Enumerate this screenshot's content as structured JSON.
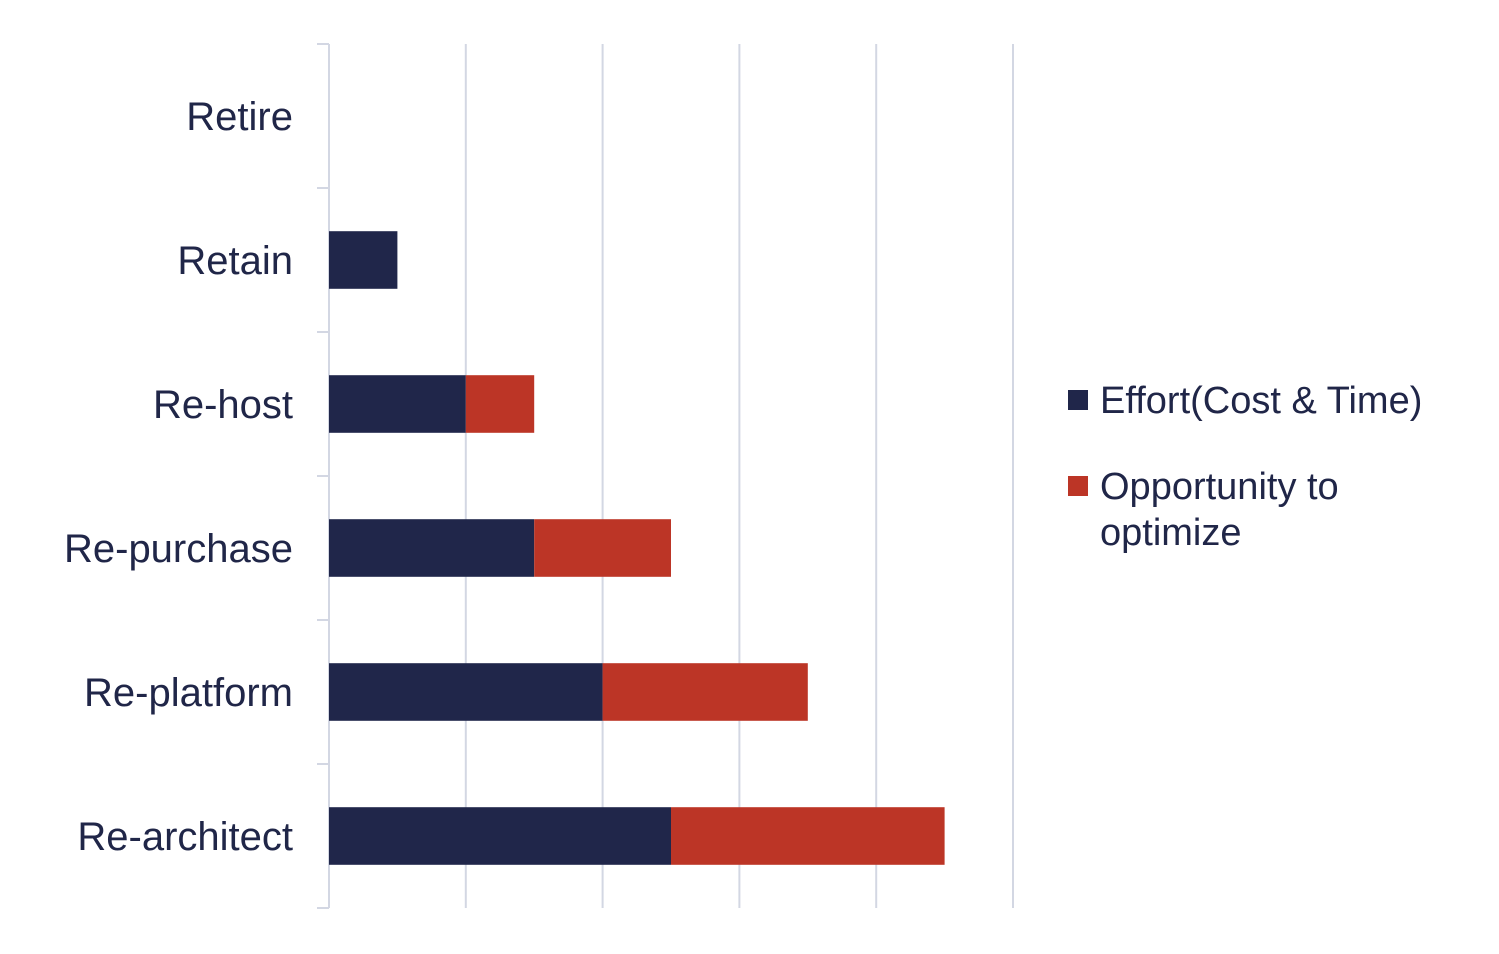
{
  "chart_data": {
    "type": "bar",
    "orientation": "horizontal",
    "stacked": true,
    "categories": [
      "Retire",
      "Retain",
      "Re-host",
      "Re-purchase",
      "Re-platform",
      "Re-architect"
    ],
    "series": [
      {
        "name": "Effort(Cost & Time)",
        "color": "#20264a",
        "values": [
          0,
          0.5,
          1,
          1.5,
          2,
          2.5
        ]
      },
      {
        "name": "Opportunity to optimize",
        "color": "#bc3526",
        "values": [
          0,
          0,
          0.5,
          1,
          1.5,
          2
        ]
      }
    ],
    "xlim": [
      0,
      5
    ],
    "x_gridlines": [
      1,
      2,
      3,
      4,
      5
    ],
    "grid": true,
    "gridline_color": "#d3d7e3",
    "axis_color": "#d3d7e3",
    "tick_labels_shown": false,
    "legend_position": "right"
  }
}
